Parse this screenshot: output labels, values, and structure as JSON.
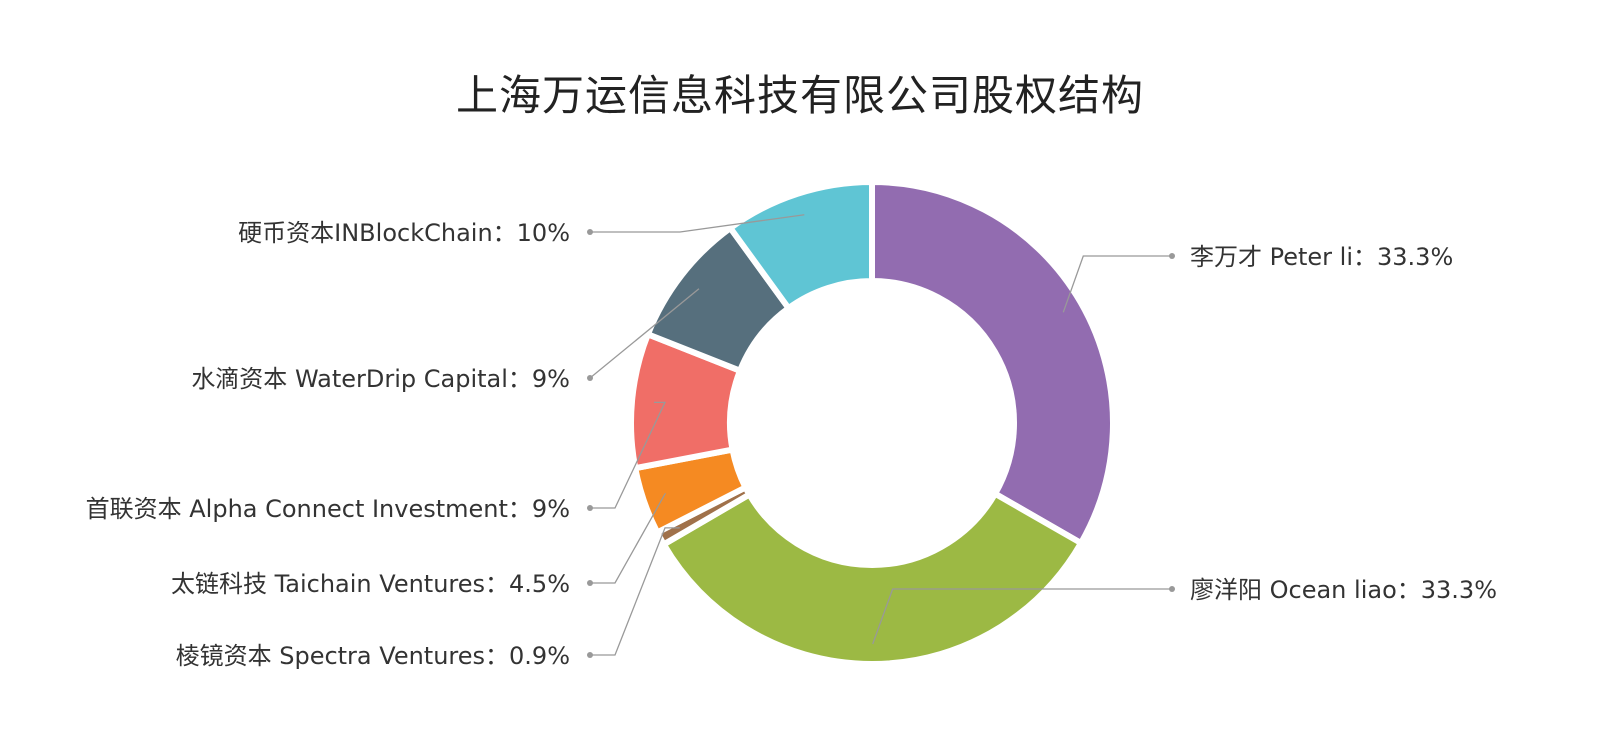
{
  "chart_data": {
    "type": "pie",
    "variant": "donut",
    "title": "上海万运信息科技有限公司股权结构",
    "slices": [
      {
        "name": "李万才 Peter li",
        "value": 33.3,
        "label": "李万才 Peter li：33.3%",
        "color": "#926cb0",
        "label_side": "right"
      },
      {
        "name": "廖洋阳 Ocean liao",
        "value": 33.3,
        "label": "廖洋阳 Ocean liao：33.3%",
        "color": "#9cb944",
        "label_side": "right"
      },
      {
        "name": "棱镜资本 Spectra Ventures",
        "value": 0.9,
        "label": "棱镜资本 Spectra Ventures：0.9%",
        "color": "#a0714a",
        "label_side": "left"
      },
      {
        "name": "太链科技 Taichain Ventures",
        "value": 4.5,
        "label": "太链科技 Taichain Ventures：4.5%",
        "color": "#f58a22",
        "label_side": "left"
      },
      {
        "name": "首联资本 Alpha Connect Investment",
        "value": 9,
        "label": "首联资本 Alpha Connect Investment：9%",
        "color": "#f06e67",
        "label_side": "left"
      },
      {
        "name": "水滴资本 WaterDrip Capital",
        "value": 9,
        "label": "水滴资本 WaterDrip Capital：9%",
        "color": "#566f7d",
        "label_side": "left"
      },
      {
        "name": "硬币资本INBlockChain",
        "value": 10,
        "label": "硬币资本INBlockChain：10%",
        "color": "#5fc5d4",
        "label_side": "left"
      }
    ],
    "legend": "none",
    "start_angle": "12 o'clock, clockwise"
  }
}
